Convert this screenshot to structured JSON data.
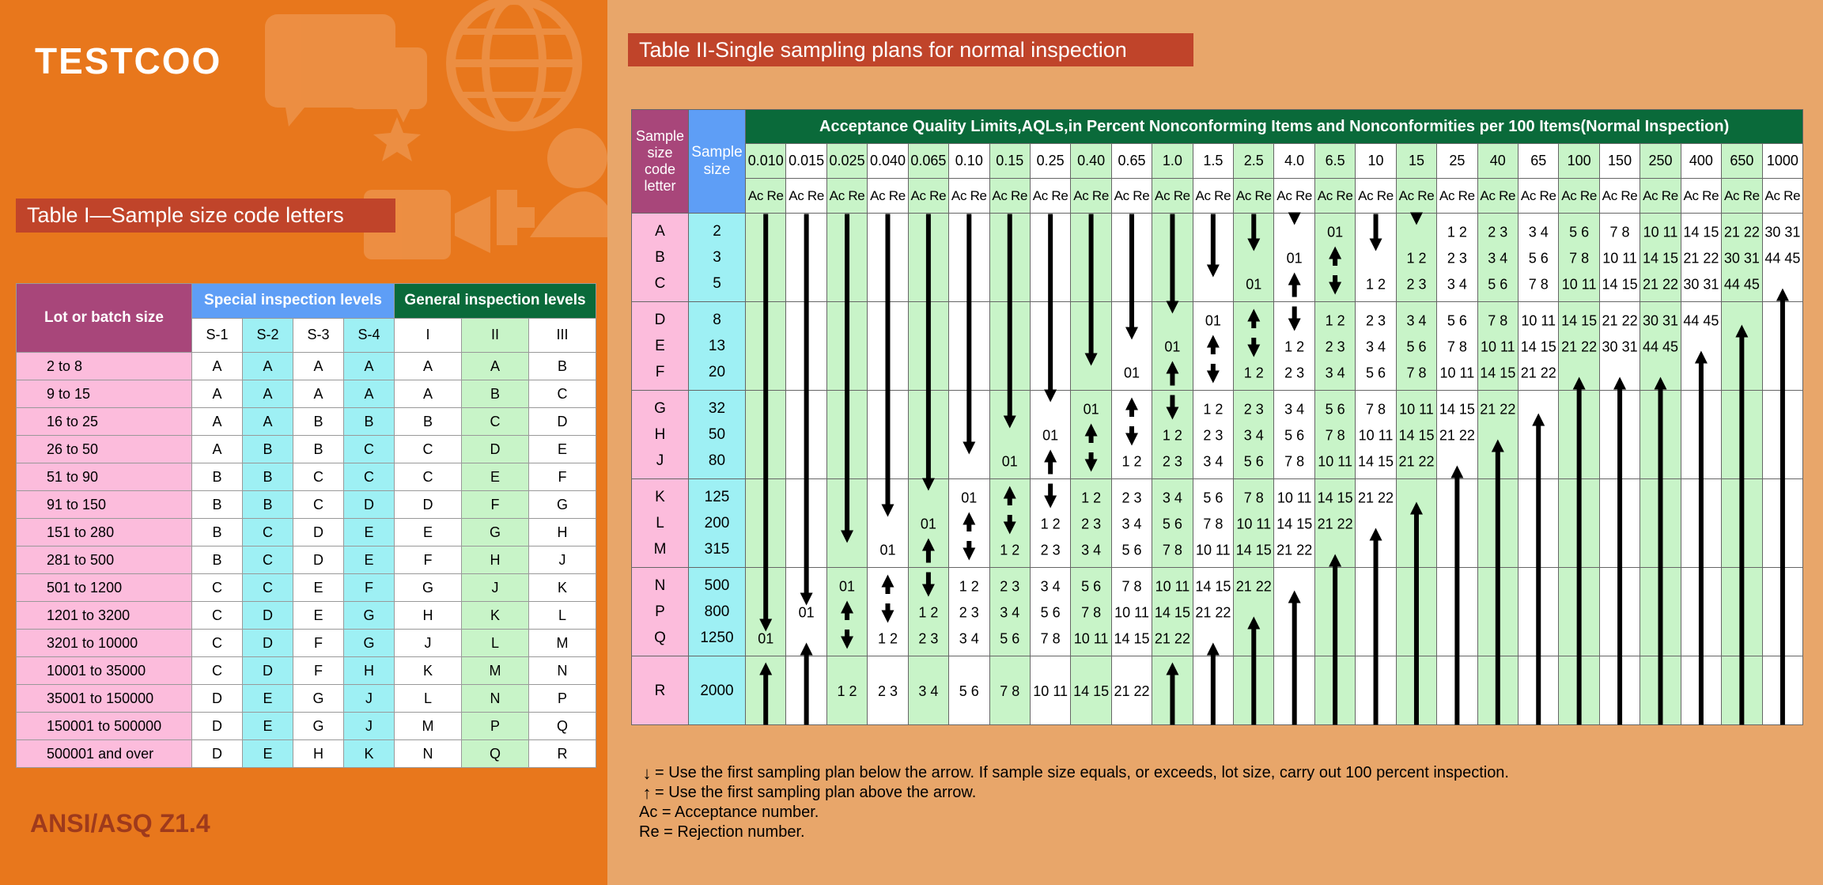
{
  "brand": "TESTCOO",
  "standard": "ANSI/ASQ Z1.4",
  "table1": {
    "title": "Table I—Sample size code letters",
    "lot_header": "Lot or batch size",
    "special_header": "Special inspection levels",
    "general_header": "General inspection levels",
    "levels": [
      "S-1",
      "S-2",
      "S-3",
      "S-4",
      "I",
      "II",
      "III"
    ],
    "rows": [
      {
        "lot": "2 to 8",
        "codes": [
          "A",
          "A",
          "A",
          "A",
          "A",
          "A",
          "B"
        ]
      },
      {
        "lot": "9 to 15",
        "codes": [
          "A",
          "A",
          "A",
          "A",
          "A",
          "B",
          "C"
        ]
      },
      {
        "lot": "16 to 25",
        "codes": [
          "A",
          "A",
          "B",
          "B",
          "B",
          "C",
          "D"
        ]
      },
      {
        "lot": "26 to 50",
        "codes": [
          "A",
          "B",
          "B",
          "C",
          "C",
          "D",
          "E"
        ]
      },
      {
        "lot": "51 to 90",
        "codes": [
          "B",
          "B",
          "C",
          "C",
          "C",
          "E",
          "F"
        ]
      },
      {
        "lot": "91 to 150",
        "codes": [
          "B",
          "B",
          "C",
          "D",
          "D",
          "F",
          "G"
        ]
      },
      {
        "lot": "151 to 280",
        "codes": [
          "B",
          "C",
          "D",
          "E",
          "E",
          "G",
          "H"
        ]
      },
      {
        "lot": "281 to 500",
        "codes": [
          "B",
          "C",
          "D",
          "E",
          "F",
          "H",
          "J"
        ]
      },
      {
        "lot": "501 to 1200",
        "codes": [
          "C",
          "C",
          "E",
          "F",
          "G",
          "J",
          "K"
        ]
      },
      {
        "lot": "1201 to 3200",
        "codes": [
          "C",
          "D",
          "E",
          "G",
          "H",
          "K",
          "L"
        ]
      },
      {
        "lot": "3201 to 10000",
        "codes": [
          "C",
          "D",
          "F",
          "G",
          "J",
          "L",
          "M"
        ]
      },
      {
        "lot": "10001 to 35000",
        "codes": [
          "C",
          "D",
          "F",
          "H",
          "K",
          "M",
          "N"
        ]
      },
      {
        "lot": "35001 to 150000",
        "codes": [
          "D",
          "E",
          "G",
          "J",
          "L",
          "N",
          "P"
        ]
      },
      {
        "lot": "150001 to 500000",
        "codes": [
          "D",
          "E",
          "G",
          "J",
          "M",
          "P",
          "Q"
        ]
      },
      {
        "lot": "500001 and over",
        "codes": [
          "D",
          "E",
          "H",
          "K",
          "N",
          "Q",
          "R"
        ]
      }
    ]
  },
  "table2": {
    "title": "Table II-Single sampling plans for normal inspection",
    "code_header": "Sample size code letter",
    "size_header": "Sample size",
    "aql_header": "Acceptance Quality Limits,AQLs,in Percent Nonconforming Items and Nonconformities per 100 Items(Normal Inspection)",
    "acre_label": "Ac Re",
    "aqls": [
      "0.010",
      "0.015",
      "0.025",
      "0.040",
      "0.065",
      "0.10",
      "0.15",
      "0.25",
      "0.40",
      "0.65",
      "1.0",
      "1.5",
      "2.5",
      "4.0",
      "6.5",
      "10",
      "15",
      "25",
      "40",
      "65",
      "100",
      "150",
      "250",
      "400",
      "650",
      "1000"
    ],
    "codes": [
      "A",
      "B",
      "C",
      "D",
      "E",
      "F",
      "G",
      "H",
      "J",
      "K",
      "L",
      "M",
      "N",
      "P",
      "Q",
      "R"
    ],
    "sizes": [
      "2",
      "3",
      "5",
      "8",
      "13",
      "20",
      "32",
      "50",
      "80",
      "125",
      "200",
      "315",
      "500",
      "800",
      "1250",
      "2000"
    ],
    "plans": [
      {
        "code": "A",
        "entries": [
          [
            14,
            "01"
          ],
          [
            17,
            "1 2"
          ],
          [
            18,
            "2 3"
          ],
          [
            19,
            "3 4"
          ],
          [
            20,
            "5 6"
          ],
          [
            21,
            "7 8"
          ],
          [
            22,
            "10 11"
          ],
          [
            23,
            "14 15"
          ],
          [
            24,
            "21 22"
          ],
          [
            25,
            "30 31"
          ]
        ]
      },
      {
        "code": "B",
        "entries": [
          [
            13,
            "01"
          ],
          [
            16,
            "1 2"
          ],
          [
            17,
            "2 3"
          ],
          [
            18,
            "3 4"
          ],
          [
            19,
            "5 6"
          ],
          [
            20,
            "7 8"
          ],
          [
            21,
            "10 11"
          ],
          [
            22,
            "14 15"
          ],
          [
            23,
            "21 22"
          ],
          [
            24,
            "30 31"
          ],
          [
            25,
            "44 45"
          ]
        ]
      },
      {
        "code": "C",
        "entries": [
          [
            12,
            "01"
          ],
          [
            15,
            "1 2"
          ],
          [
            16,
            "2 3"
          ],
          [
            17,
            "3 4"
          ],
          [
            18,
            "5 6"
          ],
          [
            19,
            "7 8"
          ],
          [
            20,
            "10 11"
          ],
          [
            21,
            "14 15"
          ],
          [
            22,
            "21 22"
          ],
          [
            23,
            "30 31"
          ],
          [
            24,
            "44 45"
          ]
        ]
      },
      {
        "code": "D",
        "entries": [
          [
            11,
            "01"
          ],
          [
            14,
            "1 2"
          ],
          [
            15,
            "2 3"
          ],
          [
            16,
            "3 4"
          ],
          [
            17,
            "5 6"
          ],
          [
            18,
            "7 8"
          ],
          [
            19,
            "10 11"
          ],
          [
            20,
            "14 15"
          ],
          [
            21,
            "21 22"
          ],
          [
            22,
            "30 31"
          ],
          [
            23,
            "44 45"
          ]
        ]
      },
      {
        "code": "E",
        "entries": [
          [
            10,
            "01"
          ],
          [
            13,
            "1 2"
          ],
          [
            14,
            "2 3"
          ],
          [
            15,
            "3 4"
          ],
          [
            16,
            "5 6"
          ],
          [
            17,
            "7 8"
          ],
          [
            18,
            "10 11"
          ],
          [
            19,
            "14 15"
          ],
          [
            20,
            "21 22"
          ],
          [
            21,
            "30 31"
          ],
          [
            22,
            "44 45"
          ]
        ]
      },
      {
        "code": "F",
        "entries": [
          [
            9,
            "01"
          ],
          [
            12,
            "1 2"
          ],
          [
            13,
            "2 3"
          ],
          [
            14,
            "3 4"
          ],
          [
            15,
            "5 6"
          ],
          [
            16,
            "7 8"
          ],
          [
            17,
            "10 11"
          ],
          [
            18,
            "14 15"
          ],
          [
            19,
            "21 22"
          ]
        ]
      },
      {
        "code": "G",
        "entries": [
          [
            8,
            "01"
          ],
          [
            11,
            "1 2"
          ],
          [
            12,
            "2 3"
          ],
          [
            13,
            "3 4"
          ],
          [
            14,
            "5 6"
          ],
          [
            15,
            "7 8"
          ],
          [
            16,
            "10 11"
          ],
          [
            17,
            "14 15"
          ],
          [
            18,
            "21 22"
          ]
        ]
      },
      {
        "code": "H",
        "entries": [
          [
            7,
            "01"
          ],
          [
            10,
            "1 2"
          ],
          [
            11,
            "2 3"
          ],
          [
            12,
            "3 4"
          ],
          [
            13,
            "5 6"
          ],
          [
            14,
            "7 8"
          ],
          [
            15,
            "10 11"
          ],
          [
            16,
            "14 15"
          ],
          [
            17,
            "21 22"
          ]
        ]
      },
      {
        "code": "J",
        "entries": [
          [
            6,
            "01"
          ],
          [
            9,
            "1 2"
          ],
          [
            10,
            "2 3"
          ],
          [
            11,
            "3 4"
          ],
          [
            12,
            "5 6"
          ],
          [
            13,
            "7 8"
          ],
          [
            14,
            "10 11"
          ],
          [
            15,
            "14 15"
          ],
          [
            16,
            "21 22"
          ]
        ]
      },
      {
        "code": "K",
        "entries": [
          [
            5,
            "01"
          ],
          [
            8,
            "1 2"
          ],
          [
            9,
            "2 3"
          ],
          [
            10,
            "3 4"
          ],
          [
            11,
            "5 6"
          ],
          [
            12,
            "7 8"
          ],
          [
            13,
            "10 11"
          ],
          [
            14,
            "14 15"
          ],
          [
            15,
            "21 22"
          ]
        ]
      },
      {
        "code": "L",
        "entries": [
          [
            4,
            "01"
          ],
          [
            7,
            "1 2"
          ],
          [
            8,
            "2 3"
          ],
          [
            9,
            "3 4"
          ],
          [
            10,
            "5 6"
          ],
          [
            11,
            "7 8"
          ],
          [
            12,
            "10 11"
          ],
          [
            13,
            "14 15"
          ],
          [
            14,
            "21 22"
          ]
        ]
      },
      {
        "code": "M",
        "entries": [
          [
            3,
            "01"
          ],
          [
            6,
            "1 2"
          ],
          [
            7,
            "2 3"
          ],
          [
            8,
            "3 4"
          ],
          [
            9,
            "5 6"
          ],
          [
            10,
            "7 8"
          ],
          [
            11,
            "10 11"
          ],
          [
            12,
            "14 15"
          ],
          [
            13,
            "21 22"
          ]
        ]
      },
      {
        "code": "N",
        "entries": [
          [
            2,
            "01"
          ],
          [
            5,
            "1 2"
          ],
          [
            6,
            "2 3"
          ],
          [
            7,
            "3 4"
          ],
          [
            8,
            "5 6"
          ],
          [
            9,
            "7 8"
          ],
          [
            10,
            "10 11"
          ],
          [
            11,
            "14 15"
          ],
          [
            12,
            "21 22"
          ]
        ]
      },
      {
        "code": "P",
        "entries": [
          [
            1,
            "01"
          ],
          [
            4,
            "1 2"
          ],
          [
            5,
            "2 3"
          ],
          [
            6,
            "3 4"
          ],
          [
            7,
            "5 6"
          ],
          [
            8,
            "7 8"
          ],
          [
            9,
            "10 11"
          ],
          [
            10,
            "14 15"
          ],
          [
            11,
            "21 22"
          ]
        ]
      },
      {
        "code": "Q",
        "entries": [
          [
            0,
            "01"
          ],
          [
            3,
            "1 2"
          ],
          [
            4,
            "2 3"
          ],
          [
            5,
            "3 4"
          ],
          [
            6,
            "5 6"
          ],
          [
            7,
            "7 8"
          ],
          [
            8,
            "10 11"
          ],
          [
            9,
            "14 15"
          ],
          [
            10,
            "21 22"
          ]
        ]
      },
      {
        "code": "R",
        "entries": [
          [
            2,
            "1 2"
          ],
          [
            3,
            "2 3"
          ],
          [
            4,
            "3 4"
          ],
          [
            5,
            "5 6"
          ],
          [
            6,
            "7 8"
          ],
          [
            7,
            "10 11"
          ],
          [
            8,
            "14 15"
          ],
          [
            9,
            "21 22"
          ]
        ]
      }
    ],
    "arrows": [
      {
        "col": 0,
        "dir": "down",
        "from": "A",
        "to": "Q"
      },
      {
        "col": 0,
        "dir": "up",
        "from": "R",
        "to": "R"
      },
      {
        "col": 1,
        "dir": "down",
        "from": "A",
        "to": "P"
      },
      {
        "col": 1,
        "dir": "up",
        "from": "Q",
        "to": "R"
      },
      {
        "col": 2,
        "dir": "down",
        "from": "A",
        "to": "M"
      },
      {
        "col": 2,
        "dir": "both",
        "from": "P",
        "to": "Q"
      },
      {
        "col": 3,
        "dir": "down",
        "from": "A",
        "to": "L"
      },
      {
        "col": 3,
        "dir": "both",
        "from": "N",
        "to": "P"
      },
      {
        "col": 4,
        "dir": "down",
        "from": "A",
        "to": "K"
      },
      {
        "col": 4,
        "dir": "both",
        "from": "M",
        "to": "N"
      },
      {
        "col": 5,
        "dir": "down",
        "from": "A",
        "to": "J"
      },
      {
        "col": 5,
        "dir": "both",
        "from": "L",
        "to": "M"
      },
      {
        "col": 6,
        "dir": "down",
        "from": "A",
        "to": "H"
      },
      {
        "col": 6,
        "dir": "both",
        "from": "K",
        "to": "L"
      },
      {
        "col": 7,
        "dir": "down",
        "from": "A",
        "to": "G"
      },
      {
        "col": 7,
        "dir": "both",
        "from": "J",
        "to": "K"
      },
      {
        "col": 8,
        "dir": "down",
        "from": "A",
        "to": "F"
      },
      {
        "col": 8,
        "dir": "both",
        "from": "H",
        "to": "J"
      },
      {
        "col": 9,
        "dir": "down",
        "from": "A",
        "to": "E"
      },
      {
        "col": 9,
        "dir": "both",
        "from": "G",
        "to": "H"
      },
      {
        "col": 10,
        "dir": "down",
        "from": "A",
        "to": "D"
      },
      {
        "col": 10,
        "dir": "both",
        "from": "F",
        "to": "G"
      },
      {
        "col": 10,
        "dir": "up",
        "from": "R",
        "to": "R"
      },
      {
        "col": 11,
        "dir": "down",
        "from": "A",
        "to": "C"
      },
      {
        "col": 11,
        "dir": "both",
        "from": "E",
        "to": "F"
      },
      {
        "col": 11,
        "dir": "up",
        "from": "Q",
        "to": "R"
      },
      {
        "col": 12,
        "dir": "down",
        "from": "A",
        "to": "B"
      },
      {
        "col": 12,
        "dir": "both",
        "from": "D",
        "to": "E"
      },
      {
        "col": 12,
        "dir": "up",
        "from": "P",
        "to": "R"
      },
      {
        "col": 13,
        "dir": "down",
        "from": "A",
        "to": "A"
      },
      {
        "col": 13,
        "dir": "both",
        "from": "C",
        "to": "D"
      },
      {
        "col": 13,
        "dir": "up",
        "from": "N",
        "to": "R"
      },
      {
        "col": 14,
        "dir": "both",
        "from": "B",
        "to": "C"
      },
      {
        "col": 14,
        "dir": "up",
        "from": "M",
        "to": "R"
      },
      {
        "col": 15,
        "dir": "down",
        "from": "A",
        "to": "B"
      },
      {
        "col": 15,
        "dir": "up",
        "from": "L",
        "to": "R"
      },
      {
        "col": 16,
        "dir": "down",
        "from": "A",
        "to": "A"
      },
      {
        "col": 16,
        "dir": "up",
        "from": "K",
        "to": "R"
      },
      {
        "col": 17,
        "dir": "up",
        "from": "J",
        "to": "R"
      },
      {
        "col": 18,
        "dir": "up",
        "from": "H",
        "to": "R"
      },
      {
        "col": 19,
        "dir": "up",
        "from": "G",
        "to": "R"
      },
      {
        "col": 20,
        "dir": "up",
        "from": "F",
        "to": "R"
      },
      {
        "col": 21,
        "dir": "up",
        "from": "F",
        "to": "R"
      },
      {
        "col": 22,
        "dir": "up",
        "from": "F",
        "to": "R"
      },
      {
        "col": 23,
        "dir": "up",
        "from": "E",
        "to": "R"
      },
      {
        "col": 24,
        "dir": "up",
        "from": "D",
        "to": "R"
      },
      {
        "col": 25,
        "dir": "up",
        "from": "C",
        "to": "R"
      }
    ]
  },
  "notes": [
    {
      "symbol": "↓",
      "text": " = Use the first sampling plan below the arrow. If sample size equals, or exceeds, lot size, carry out 100 percent inspection."
    },
    {
      "symbol": "↑",
      "text": " = Use the first sampling plan above the arrow."
    },
    {
      "symbol": "",
      "text": "Ac = Acceptance number."
    },
    {
      "symbol": "",
      "text": "Re = Rejection number."
    }
  ],
  "colors": {
    "left_bg": "#e8771c",
    "right_bg": "#e8a66a",
    "title_box": "#c0442a",
    "magenta_header": "#a8467a",
    "blue_header": "#5e9ef6",
    "green_header": "#0a6a3a",
    "pink_cell": "#fcbcdc",
    "cyan_cell": "#9ef0f4",
    "green_cell": "#c8f4c8"
  }
}
